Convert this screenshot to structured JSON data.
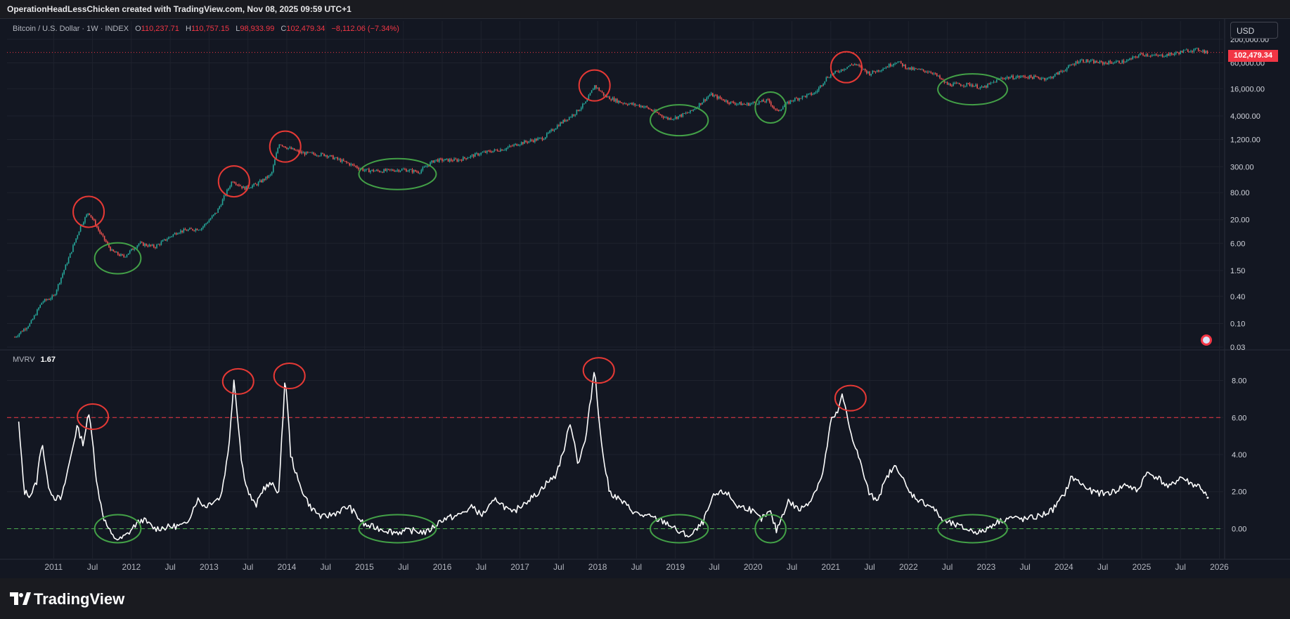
{
  "header": {
    "attribution": "OperationHeadLessChicken created with TradingView.com, Nov 08, 2025 09:59 UTC+1"
  },
  "legend": {
    "symbol": "Bitcoin / U.S. Dollar · 1W · INDEX",
    "open_label": "O",
    "open": "110,237.71",
    "high_label": "H",
    "high": "110,757.15",
    "low_label": "L",
    "low": "98,933.99",
    "close_label": "C",
    "close": "102,479.34",
    "change": "−8,112.06 (−7.34%)"
  },
  "currency_button": "USD",
  "last_price_tag": "102,479.34",
  "indicator": {
    "name": "MVRV",
    "value": "1.67"
  },
  "footer": {
    "brand": "TradingView"
  },
  "colors": {
    "background": "#131722",
    "up": "#26a69a",
    "down": "#ef5350",
    "line": "#ffffff",
    "high_threshold": "#f23645",
    "low_threshold": "#4caf50",
    "annotation_red": "#e53935",
    "annotation_green": "#43a047"
  },
  "chart_data": [
    {
      "type": "line",
      "title": "Bitcoin / U.S. Dollar · 1W · INDEX",
      "scale": "log",
      "ylim": [
        0.03,
        200000
      ],
      "yticks": [
        200000,
        60000,
        16000,
        4000,
        1200,
        300,
        80,
        20,
        6,
        1.5,
        0.4,
        0.1,
        0.03
      ],
      "ytick_labels": [
        "200,000.00",
        "60,000.00",
        "16,000.00",
        "4,000.00",
        "1,200.00",
        "300.00",
        "80.00",
        "20.00",
        "6.00",
        "1.50",
        "0.40",
        "0.10",
        "0.03"
      ],
      "last_price": 102479.34,
      "x": [
        2010.5,
        2010.7,
        2010.85,
        2011.0,
        2011.2,
        2011.35,
        2011.45,
        2011.6,
        2011.75,
        2011.9,
        2012.1,
        2012.3,
        2012.6,
        2012.9,
        2013.1,
        2013.3,
        2013.45,
        2013.6,
        2013.8,
        2013.9,
        2014.0,
        2014.2,
        2014.5,
        2014.8,
        2015.0,
        2015.2,
        2015.5,
        2015.7,
        2015.9,
        2016.2,
        2016.5,
        2016.8,
        2017.0,
        2017.3,
        2017.5,
        2017.7,
        2017.85,
        2017.96,
        2018.1,
        2018.3,
        2018.6,
        2018.9,
        2019.0,
        2019.2,
        2019.45,
        2019.7,
        2019.9,
        2020.2,
        2020.3,
        2020.5,
        2020.8,
        2020.95,
        2021.1,
        2021.3,
        2021.5,
        2021.7,
        2021.85,
        2022.0,
        2022.3,
        2022.5,
        2022.8,
        2022.95,
        2023.2,
        2023.5,
        2023.8,
        2024.0,
        2024.2,
        2024.5,
        2024.8,
        2025.0,
        2025.2,
        2025.4,
        2025.6,
        2025.75,
        2025.85
      ],
      "values": [
        0.05,
        0.1,
        0.3,
        0.4,
        3,
        15,
        30,
        10,
        4,
        3,
        6,
        5,
        11,
        13,
        30,
        150,
        100,
        120,
        200,
        1000,
        800,
        600,
        550,
        350,
        250,
        240,
        260,
        230,
        420,
        420,
        600,
        750,
        1000,
        1300,
        2600,
        4500,
        8000,
        19000,
        11000,
        8000,
        6500,
        3500,
        3700,
        5000,
        12000,
        8000,
        7200,
        8800,
        5000,
        9000,
        13000,
        29000,
        40000,
        58000,
        35000,
        48000,
        65000,
        45000,
        38000,
        20000,
        20000,
        16500,
        28000,
        30000,
        27000,
        42000,
        69000,
        60000,
        65000,
        95000,
        85000,
        95000,
        115000,
        118000,
        102479
      ]
    },
    {
      "type": "line",
      "title": "MVRV",
      "current_value": 1.67,
      "ylim": [
        -1.5,
        9.5
      ],
      "yticks": [
        8,
        6,
        4,
        2,
        0
      ],
      "ytick_labels": [
        "8.00",
        "6.00",
        "4.00",
        "2.00",
        "0.00"
      ],
      "thresholds": [
        6,
        0
      ],
      "x": [
        2010.55,
        2010.62,
        2010.7,
        2010.78,
        2010.85,
        2010.92,
        2011.0,
        2011.1,
        2011.2,
        2011.3,
        2011.38,
        2011.45,
        2011.5,
        2011.55,
        2011.65,
        2011.75,
        2011.85,
        2011.95,
        2012.05,
        2012.15,
        2012.3,
        2012.5,
        2012.7,
        2012.85,
        2012.95,
        2013.05,
        2013.15,
        2013.25,
        2013.32,
        2013.38,
        2013.42,
        2013.5,
        2013.6,
        2013.7,
        2013.8,
        2013.9,
        2013.98,
        2014.05,
        2014.15,
        2014.3,
        2014.45,
        2014.6,
        2014.8,
        2015.0,
        2015.2,
        2015.4,
        2015.6,
        2015.8,
        2016.0,
        2016.2,
        2016.4,
        2016.5,
        2016.7,
        2016.9,
        2017.05,
        2017.2,
        2017.35,
        2017.45,
        2017.55,
        2017.65,
        2017.75,
        2017.85,
        2017.96,
        2018.05,
        2018.15,
        2018.3,
        2018.5,
        2018.7,
        2018.9,
        2019.05,
        2019.2,
        2019.35,
        2019.5,
        2019.65,
        2019.8,
        2019.95,
        2020.1,
        2020.22,
        2020.3,
        2020.45,
        2020.6,
        2020.75,
        2020.9,
        2021.0,
        2021.08,
        2021.15,
        2021.25,
        2021.35,
        2021.5,
        2021.6,
        2021.75,
        2021.85,
        2022.0,
        2022.15,
        2022.3,
        2022.45,
        2022.6,
        2022.8,
        2022.95,
        2023.1,
        2023.3,
        2023.5,
        2023.7,
        2023.85,
        2024.0,
        2024.1,
        2024.2,
        2024.35,
        2024.5,
        2024.65,
        2024.8,
        2024.95,
        2025.05,
        2025.2,
        2025.35,
        2025.5,
        2025.65,
        2025.75,
        2025.85
      ],
      "values": [
        5.7,
        2.0,
        1.8,
        2.5,
        4.8,
        2.5,
        1.7,
        1.6,
        3.5,
        5.5,
        4.6,
        6.2,
        5.0,
        2.5,
        0.5,
        -0.4,
        -0.6,
        -0.3,
        0.2,
        0.5,
        0.0,
        0.1,
        0.2,
        1.6,
        1.2,
        1.5,
        1.7,
        4.2,
        8.1,
        5.5,
        3.5,
        2.0,
        1.2,
        2.2,
        2.4,
        2.0,
        8.4,
        4.0,
        2.5,
        1.2,
        0.6,
        0.8,
        1.2,
        0.2,
        0.0,
        -0.2,
        -0.1,
        -0.2,
        0.5,
        0.7,
        1.2,
        0.7,
        1.6,
        0.8,
        1.4,
        1.8,
        2.5,
        2.8,
        4.0,
        5.8,
        3.5,
        4.9,
        8.7,
        4.5,
        2.0,
        1.5,
        0.8,
        0.6,
        0.3,
        -0.2,
        -0.4,
        0.3,
        1.8,
        2.0,
        1.2,
        1.1,
        0.5,
        0.9,
        -0.1,
        1.5,
        1.0,
        1.6,
        3.0,
        5.8,
        6.2,
        7.2,
        5.3,
        4.0,
        1.8,
        1.6,
        3.0,
        3.4,
        2.0,
        1.5,
        1.2,
        0.4,
        0.2,
        -0.1,
        -0.2,
        0.3,
        0.6,
        0.5,
        0.7,
        1.0,
        1.8,
        2.8,
        2.5,
        2.0,
        1.9,
        2.0,
        2.4,
        2.0,
        3.0,
        2.8,
        2.2,
        2.8,
        2.4,
        2.3,
        1.67
      ]
    }
  ],
  "x_axis": {
    "range": [
      2010.4,
      2026.05
    ],
    "ticks": [
      2011,
      2011.5,
      2012,
      2012.5,
      2013,
      2013.5,
      2014,
      2014.5,
      2015,
      2015.5,
      2016,
      2016.5,
      2017,
      2017.5,
      2018,
      2018.5,
      2019,
      2019.5,
      2020,
      2020.5,
      2021,
      2021.5,
      2022,
      2022.5,
      2023,
      2023.5,
      2024,
      2024.5,
      2025,
      2025.5,
      2026
    ],
    "labels": [
      "2011",
      "Jul",
      "2012",
      "Jul",
      "2013",
      "Jul",
      "2014",
      "Jul",
      "2015",
      "Jul",
      "2016",
      "Jul",
      "2017",
      "Jul",
      "2018",
      "Jul",
      "2019",
      "Jul",
      "2020",
      "Jul",
      "2021",
      "Jul",
      "2022",
      "Jul",
      "2023",
      "Jul",
      "2024",
      "Jul",
      "2025",
      "Jul",
      "2026"
    ]
  },
  "annotations": {
    "tops": [
      2011.45,
      2013.32,
      2013.98,
      2017.96,
      2021.2
    ],
    "bottoms": [
      {
        "from": 2011.6,
        "to": 2012.05
      },
      {
        "from": 2015.0,
        "to": 2015.85
      },
      {
        "from": 2018.75,
        "to": 2019.35
      },
      {
        "from": 2020.1,
        "to": 2020.35
      },
      {
        "from": 2022.45,
        "to": 2023.2
      }
    ]
  }
}
